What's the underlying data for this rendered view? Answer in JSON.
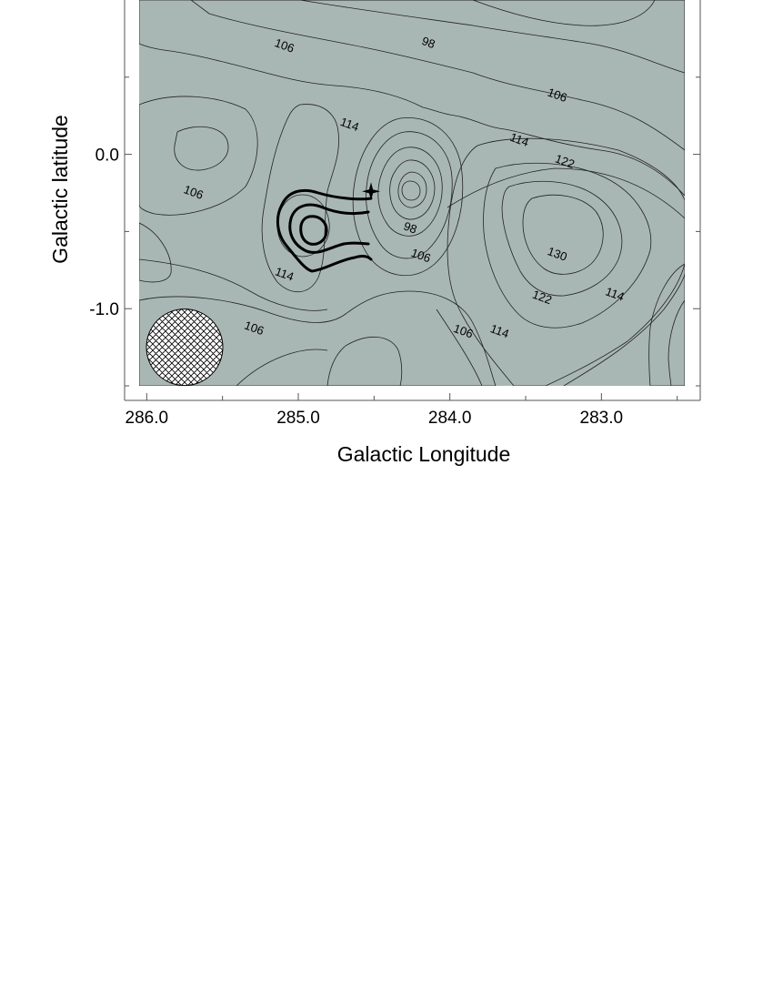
{
  "chart_data": {
    "type": "contour",
    "xlabel": "Galactic Longitude",
    "ylabel": "Galactic latitude",
    "x_ticks": [
      "286.0",
      "285.0",
      "284.0",
      "283.0"
    ],
    "x_tick_values": [
      286.0,
      285.0,
      284.0,
      283.0
    ],
    "y_ticks": [
      "0.0",
      "-1.0"
    ],
    "y_tick_values": [
      0.0,
      -1.0
    ],
    "xlim": [
      286.05,
      282.45
    ],
    "ylim": [
      -1.5,
      1.0
    ],
    "x_reversed": true,
    "contour_levels": [
      98,
      106,
      114,
      122,
      130
    ],
    "contour_labels": [
      {
        "text": "106",
        "x": 285.1,
        "y": 0.68
      },
      {
        "text": "98",
        "x": 284.15,
        "y": 0.7
      },
      {
        "text": "106",
        "x": 283.3,
        "y": 0.36
      },
      {
        "text": "114",
        "x": 284.67,
        "y": 0.17
      },
      {
        "text": "114",
        "x": 283.55,
        "y": 0.07
      },
      {
        "text": "122",
        "x": 283.25,
        "y": -0.07
      },
      {
        "text": "106",
        "x": 285.7,
        "y": -0.27
      },
      {
        "text": "98",
        "x": 284.27,
        "y": -0.5
      },
      {
        "text": "106",
        "x": 284.2,
        "y": -0.68
      },
      {
        "text": "130",
        "x": 283.3,
        "y": -0.67
      },
      {
        "text": "114",
        "x": 285.1,
        "y": -0.8
      },
      {
        "text": "122",
        "x": 283.4,
        "y": -0.95
      },
      {
        "text": "114",
        "x": 282.92,
        "y": -0.93
      },
      {
        "text": "106",
        "x": 285.3,
        "y": -1.15
      },
      {
        "text": "106",
        "x": 283.92,
        "y": -1.17
      },
      {
        "text": "114",
        "x": 283.68,
        "y": -1.17
      }
    ],
    "marker": {
      "symbol": "star",
      "x": 284.52,
      "y": -0.24
    },
    "beam": {
      "shape": "circle",
      "fill": "crosshatch",
      "x": 285.75,
      "y": -1.25
    },
    "colormap": [
      "#ffffff",
      "#dde1df",
      "#c2cac7",
      "#a9b7b4",
      "#8fa09d",
      "#71847f",
      "#5b6d68",
      "#3e4f4a"
    ]
  }
}
